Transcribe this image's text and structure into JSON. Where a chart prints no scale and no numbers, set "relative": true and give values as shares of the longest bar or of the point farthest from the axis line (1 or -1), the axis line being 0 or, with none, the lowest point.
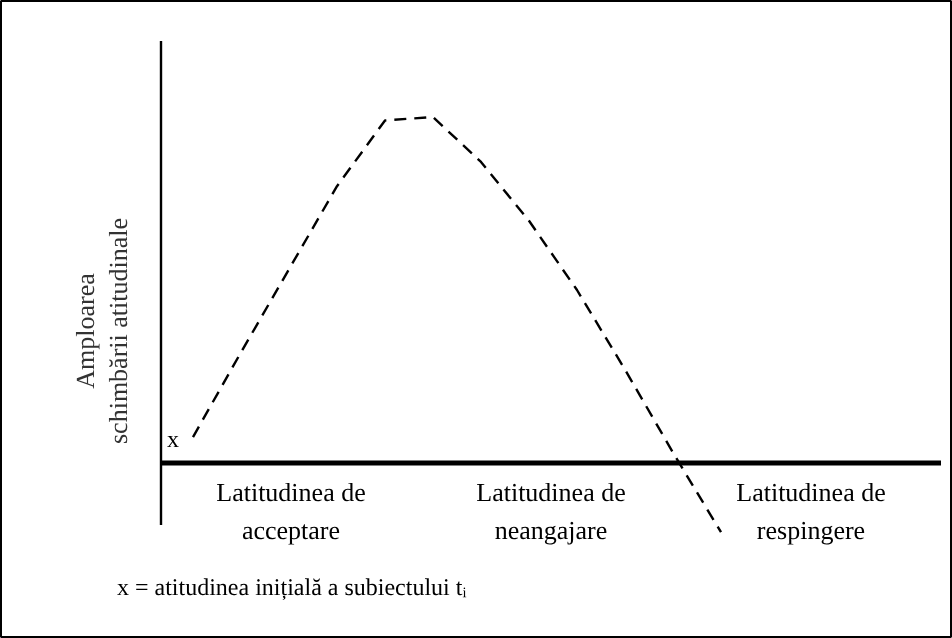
{
  "chart_data": {
    "type": "line",
    "relative": true,
    "ylabel": "Amploarea\nschimbării atitudinale",
    "categories": [
      null,
      null,
      null,
      null,
      null,
      null,
      null,
      null,
      null,
      null,
      null,
      null
    ],
    "series": [
      {
        "color": "#000000",
        "line_style": "dashed",
        "values": [
          0.075,
          0.32,
          0.56,
          0.8,
          0.99,
          1.0,
          0.87,
          0.7,
          0.5,
          0.27,
          0.03,
          -0.2
        ]
      }
    ],
    "annotations": [
      "Latitudinea de\nacceptare",
      "Latitudinea de\nneangajare",
      "Latitudinea de\nrespingere",
      "x",
      "x = atitudinea inițială a subiectului tᵢ"
    ],
    "grid": false
  }
}
